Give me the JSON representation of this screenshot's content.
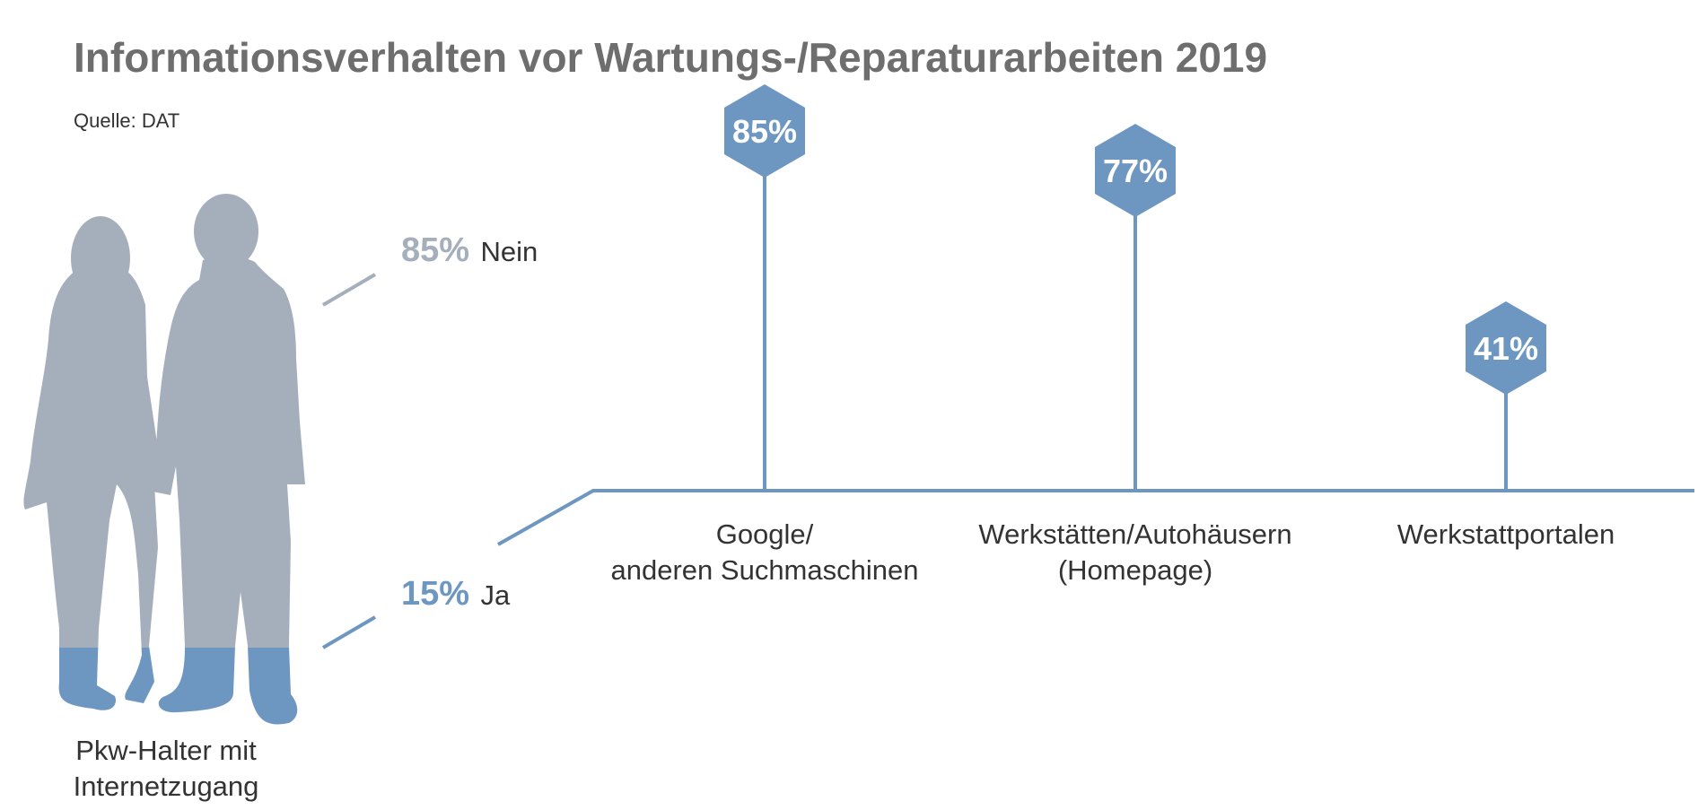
{
  "title": "Informationsverhalten vor Wartungs-/Reparaturarbeiten 2019",
  "source": "Quelle: DAT",
  "colors": {
    "title": "#6e6e6e",
    "text": "#333333",
    "gray_figure": "#a5afbc",
    "blue": "#6d97c1",
    "axis": "#6d97c1"
  },
  "figure": {
    "icon": "people-silhouette-icon",
    "caption_line1": "Pkw-Halter mit",
    "caption_line2": "Internetzugang"
  },
  "split": {
    "no_pct": "85%",
    "no_label": "Nein",
    "yes_pct": "15%",
    "yes_label": "Ja"
  },
  "chart_data": {
    "type": "bar",
    "title": "Informationsverhalten vor Wartungs-/Reparaturarbeiten 2019",
    "categories": [
      "Google/ anderen Suchmaschinen",
      "Werkstätten/Autohäusern (Homepage)",
      "Werkstattportalen"
    ],
    "category_lines": [
      [
        "Google/",
        "anderen Suchmaschinen"
      ],
      [
        "Werkstätten/Autohäusern",
        "(Homepage)"
      ],
      [
        "Werkstattportalen"
      ]
    ],
    "values": [
      85,
      77,
      41
    ],
    "value_labels": [
      "85%",
      "77%",
      "41%"
    ],
    "unit": "%",
    "marker": "hexagon"
  }
}
